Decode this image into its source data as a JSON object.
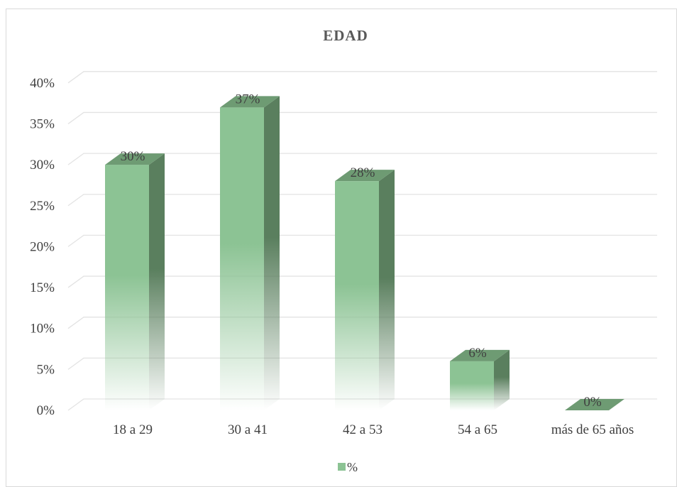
{
  "chart_data": {
    "type": "bar",
    "title": "EDAD",
    "categories": [
      "18 a 29",
      "30 a 41",
      "42 a 53",
      "54 a  65",
      "más de 65 años"
    ],
    "series": [
      {
        "name": "%",
        "values": [
          0.3,
          0.37,
          0.28,
          0.06,
          0.0
        ]
      }
    ],
    "data_labels": [
      "30%",
      "37%",
      "28%",
      "6%",
      "0%"
    ],
    "y_ticks": [
      "0%",
      "5%",
      "10%",
      "15%",
      "20%",
      "25%",
      "30%",
      "35%",
      "40%"
    ],
    "ylim": [
      0,
      0.4
    ],
    "xlabel": "",
    "ylabel": "",
    "grid": true,
    "legend_position": "bottom",
    "style": "3d-column",
    "colors": {
      "front": "#8cc394",
      "side": "#5a7f5e",
      "top": "#6e9b73",
      "grid": "#e3e3e3",
      "text": "#404040"
    }
  }
}
